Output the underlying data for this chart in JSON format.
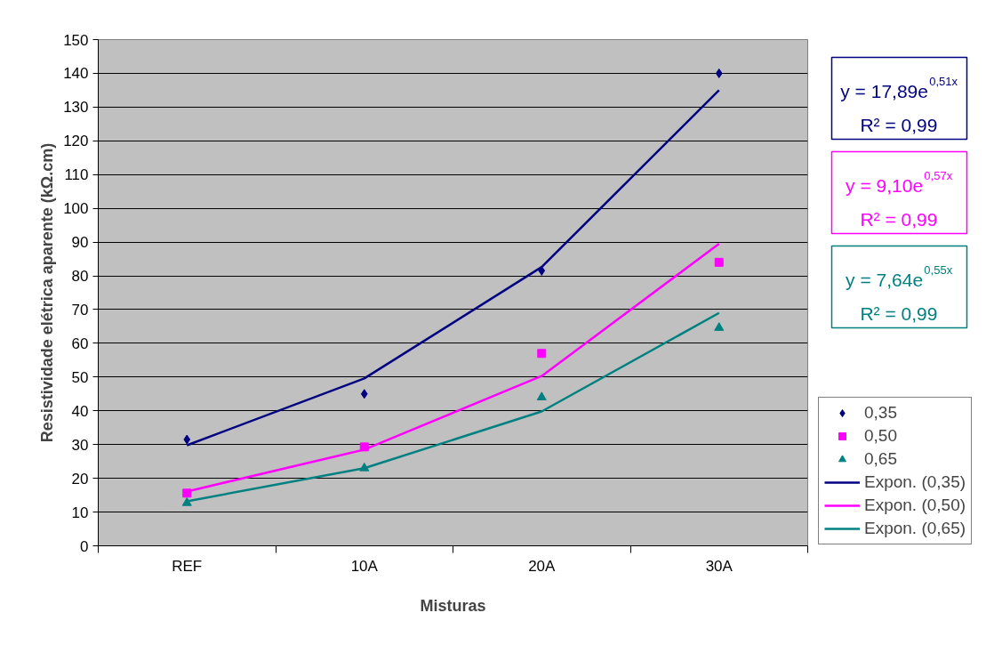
{
  "chart_data": {
    "type": "scatter",
    "xlabel": "Misturas",
    "ylabel": "Resistividade elétrica aparente (kΩ.cm)",
    "categories": [
      "REF",
      "10A",
      "20A",
      "30A"
    ],
    "ylim": [
      0,
      150
    ],
    "yticks": [
      0,
      10,
      20,
      30,
      40,
      50,
      60,
      70,
      80,
      90,
      100,
      110,
      120,
      130,
      140,
      150
    ],
    "grid": "y",
    "legend": "right",
    "series": [
      {
        "name": "0,35",
        "marker": "diamond",
        "color": "#000080",
        "values": [
          31.5,
          45,
          81.5,
          140
        ]
      },
      {
        "name": "0,50",
        "marker": "square",
        "color": "#ff00ff",
        "values": [
          15.6,
          29.3,
          57,
          84
        ]
      },
      {
        "name": "0,65",
        "marker": "triangle",
        "color": "#008080",
        "values": [
          12.7,
          23,
          44,
          64.6
        ]
      },
      {
        "name": "Expon. (0,35)",
        "type": "line",
        "color": "#000080",
        "values": [
          29.8,
          49.6,
          82.6,
          135
        ]
      },
      {
        "name": "Expon. (0,50)",
        "type": "line",
        "color": "#ff00ff",
        "values": [
          16.1,
          28.5,
          50.3,
          89.5
        ]
      },
      {
        "name": "Expon. (0,65)",
        "type": "line",
        "color": "#008080",
        "values": [
          13.2,
          23.0,
          39.8,
          69
        ]
      }
    ],
    "annotations": [
      "y = 17,89e$^{0,51x}$\nR² = 0,99",
      "y = 9,10e$^{0,57x}$\nR² = 0,99",
      "y = 7,64e$^{0,55x}$\nR² = 0,99"
    ]
  }
}
